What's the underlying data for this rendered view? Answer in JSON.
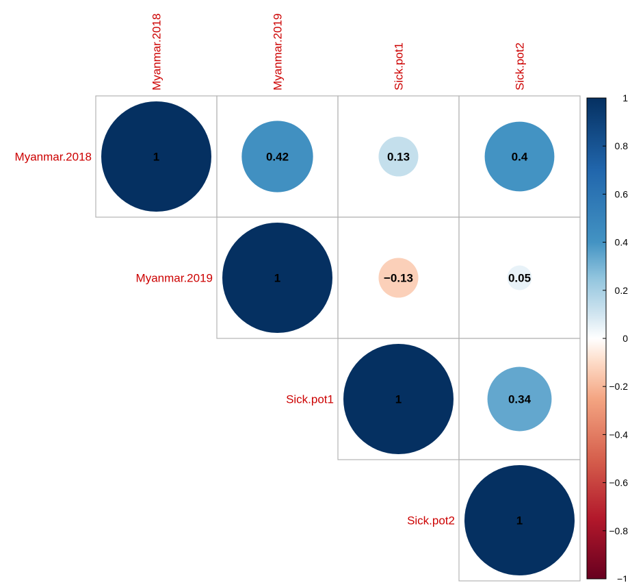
{
  "chart_data": {
    "type": "heatmap",
    "subtype": "correlogram-upper-circle",
    "variables": [
      "Myanmar.2018",
      "Myanmar.2019",
      "Sick.pot1",
      "Sick.pot2"
    ],
    "cells": [
      {
        "row": "Myanmar.2018",
        "col": "Myanmar.2018",
        "value": 1,
        "label": "1"
      },
      {
        "row": "Myanmar.2018",
        "col": "Myanmar.2019",
        "value": 0.42,
        "label": "0.42"
      },
      {
        "row": "Myanmar.2018",
        "col": "Sick.pot1",
        "value": 0.13,
        "label": "0.13"
      },
      {
        "row": "Myanmar.2018",
        "col": "Sick.pot2",
        "value": 0.4,
        "label": "0.4"
      },
      {
        "row": "Myanmar.2019",
        "col": "Myanmar.2019",
        "value": 1,
        "label": "1"
      },
      {
        "row": "Myanmar.2019",
        "col": "Sick.pot1",
        "value": -0.13,
        "label": "−0.13"
      },
      {
        "row": "Myanmar.2019",
        "col": "Sick.pot2",
        "value": 0.05,
        "label": "0.05"
      },
      {
        "row": "Sick.pot1",
        "col": "Sick.pot1",
        "value": 1,
        "label": "1"
      },
      {
        "row": "Sick.pot1",
        "col": "Sick.pot2",
        "value": 0.34,
        "label": "0.34"
      },
      {
        "row": "Sick.pot2",
        "col": "Sick.pot2",
        "value": 1,
        "label": "1"
      }
    ],
    "color_scale": {
      "range": [
        -1,
        1
      ],
      "ticks": [
        1,
        0.8,
        0.6,
        0.4,
        0.2,
        0,
        -0.2,
        -0.4,
        -0.6,
        -0.8,
        -1
      ],
      "tick_labels": [
        "1",
        "0.8",
        "0.6",
        "0.4",
        "0.2",
        "0",
        "−0.2",
        "−0.4",
        "−0.6",
        "−0.8",
        "−1"
      ],
      "stops": [
        {
          "value": -1,
          "color": "#67001f"
        },
        {
          "value": -0.75,
          "color": "#b2182b"
        },
        {
          "value": -0.5,
          "color": "#d6604d"
        },
        {
          "value": -0.25,
          "color": "#f4a582"
        },
        {
          "value": -0.1,
          "color": "#fddbc7"
        },
        {
          "value": 0,
          "color": "#ffffff"
        },
        {
          "value": 0.1,
          "color": "#d1e5f0"
        },
        {
          "value": 0.25,
          "color": "#92c5de"
        },
        {
          "value": 0.4,
          "color": "#4393c3"
        },
        {
          "value": 0.7,
          "color": "#2166ac"
        },
        {
          "value": 1,
          "color": "#053061"
        }
      ]
    },
    "legend_position": "right"
  },
  "colors": {
    "label_color": "#cc0000",
    "grid_color": "#b3b3b3"
  }
}
